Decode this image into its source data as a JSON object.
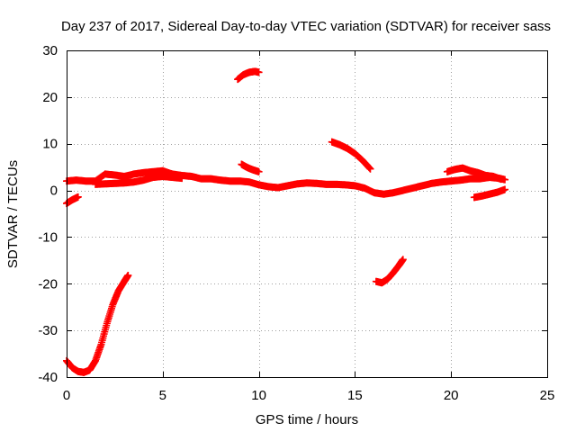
{
  "chart_data": {
    "type": "scatter",
    "title": "Day 237 of 2017, Sidereal Day-to-day VTEC variation (SDTVAR) for receiver sass",
    "xlabel": "GPS time / hours",
    "ylabel": "SDTVAR / TECUs",
    "xlim": [
      0,
      25
    ],
    "ylim": [
      -40,
      30
    ],
    "xticks": [
      0,
      5,
      10,
      15,
      20,
      25
    ],
    "yticks": [
      -40,
      -30,
      -20,
      -10,
      0,
      10,
      20,
      30
    ],
    "xtick_labels": [
      "0",
      "5",
      "10",
      "15",
      "20",
      "25"
    ],
    "ytick_labels": [
      "-40",
      "-30",
      "-20",
      "-10",
      "0",
      "10",
      "20",
      "30"
    ],
    "grid": true,
    "marker": "plus",
    "color": "#ff0000",
    "series": [
      {
        "name": "main-band-a",
        "x": [
          0,
          0.5,
          1,
          1.5,
          2,
          2.5,
          3,
          3.5,
          4,
          4.5,
          5,
          5.5,
          6,
          6.5,
          7,
          7.5,
          8,
          8.5,
          9,
          9.5,
          10
        ],
        "y": [
          2,
          2.2,
          2,
          2,
          3.5,
          3.3,
          3.0,
          3.5,
          3.8,
          4.0,
          4.2,
          3.5,
          3.2,
          3.0,
          2.5,
          2.5,
          2.2,
          2.0,
          2.0,
          1.8,
          1.2
        ]
      },
      {
        "name": "main-band-b",
        "x": [
          1.5,
          2,
          2.5,
          3,
          3.5,
          4,
          4.5,
          5,
          5.5,
          6
        ],
        "y": [
          1.3,
          1.4,
          1.5,
          1.6,
          1.8,
          2.2,
          2.8,
          3.0,
          2.8,
          2.6
        ]
      },
      {
        "name": "main-band-c",
        "x": [
          10,
          10.5,
          11,
          11.5,
          12,
          12.5,
          13,
          13.5,
          14,
          14.5,
          15,
          15.5,
          16,
          16.5,
          17,
          17.5,
          18,
          18.5,
          19,
          19.5,
          20,
          20.5,
          21,
          21.5,
          22,
          22.5,
          22.8
        ],
        "y": [
          1.2,
          0.8,
          0.6,
          1.0,
          1.4,
          1.6,
          1.5,
          1.3,
          1.3,
          1.2,
          1.0,
          0.5,
          -0.5,
          -0.8,
          -0.5,
          0,
          0.5,
          1.0,
          1.5,
          1.8,
          2.0,
          2.2,
          2.5,
          2.5,
          2.8,
          2.6,
          2.3
        ]
      },
      {
        "name": "late-upper",
        "x": [
          19.8,
          20.2,
          20.6,
          21,
          21.4,
          21.8,
          22.2,
          22.6
        ],
        "y": [
          4.0,
          4.5,
          4.8,
          4.2,
          3.8,
          3.2,
          3.0,
          2.4
        ]
      },
      {
        "name": "late-lower",
        "x": [
          21.2,
          21.6,
          22,
          22.4,
          22.8
        ],
        "y": [
          -1.5,
          -1.2,
          -0.8,
          -0.4,
          0.2
        ]
      },
      {
        "name": "start-dip",
        "x": [
          0,
          0.3,
          0.6
        ],
        "y": [
          -2.8,
          -2.0,
          -1.4
        ]
      },
      {
        "name": "early-deep-arc",
        "x": [
          0,
          0.3,
          0.6,
          0.9,
          1.2,
          1.5,
          1.8,
          2.1,
          2.4,
          2.7,
          3.0,
          3.2
        ],
        "y": [
          -36.5,
          -38.0,
          -38.8,
          -39.0,
          -38.5,
          -36.5,
          -33.0,
          -28.5,
          -24.5,
          -21.5,
          -19.5,
          -18.2
        ]
      },
      {
        "name": "near-9h-upper",
        "x": [
          8.9,
          9.2,
          9.5,
          9.8,
          10.0
        ],
        "y": [
          23.8,
          24.8,
          25.3,
          25.5,
          25.3
        ]
      },
      {
        "name": "near-9h-mid",
        "x": [
          9.1,
          9.4,
          9.7,
          10.0
        ],
        "y": [
          5.6,
          4.9,
          4.4,
          4.0
        ]
      },
      {
        "name": "near-14h",
        "x": [
          13.8,
          14.2,
          14.6,
          15.0,
          15.4,
          15.8
        ],
        "y": [
          10.4,
          9.8,
          9.0,
          7.9,
          6.4,
          4.6
        ]
      },
      {
        "name": "near-16h-low",
        "x": [
          16.1,
          16.4,
          16.7,
          17.0,
          17.3,
          17.5
        ],
        "y": [
          -19.5,
          -19.8,
          -19.0,
          -17.6,
          -16.0,
          -14.8
        ]
      }
    ]
  }
}
